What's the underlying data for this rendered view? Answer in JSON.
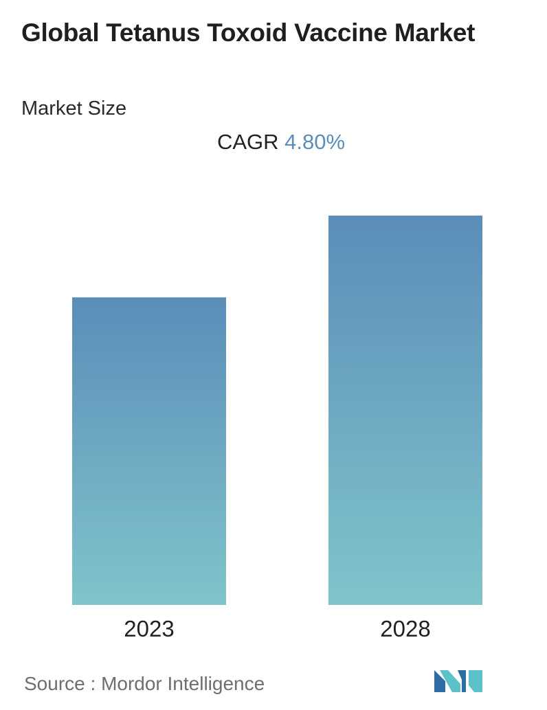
{
  "header": {
    "title": "Global Tetanus Toxoid Vaccine Market",
    "subtitle": "Market Size",
    "cagr_label": "CAGR",
    "cagr_value": "4.80%"
  },
  "footer": {
    "source_label": "Source :",
    "source_name": "Mordor Intelligence"
  },
  "colors": {
    "bar_top": "#5b8db8",
    "bar_bottom": "#80c4cb",
    "cagr_accent": "#5b8db8",
    "logo_dark": "#2e6da4",
    "logo_light": "#5bc2c9"
  },
  "chart_data": {
    "type": "bar",
    "categories": [
      "2023",
      "2028"
    ],
    "values": [
      0.79,
      1.0
    ],
    "title": "Global Tetanus Toxoid Vaccine Market",
    "xlabel": "",
    "ylabel": "",
    "ylim": [
      0,
      1.0
    ],
    "grid": false,
    "legend": "none"
  }
}
